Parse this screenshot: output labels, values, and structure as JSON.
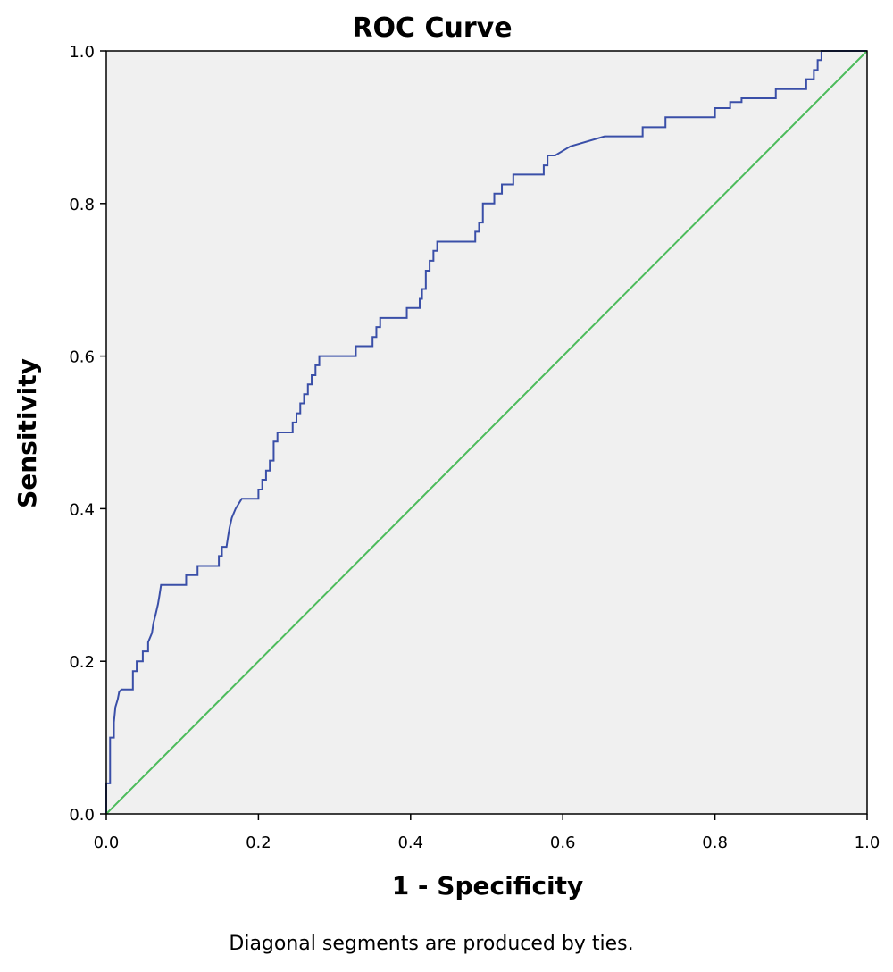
{
  "chart_data": {
    "type": "line",
    "title": "ROC Curve",
    "xlabel": "1 - Specificity",
    "ylabel": "Sensitivity",
    "footnote": "Diagonal segments are produced by ties.",
    "xlim": [
      0,
      1
    ],
    "ylim": [
      0,
      1
    ],
    "xticks": [
      "0.0",
      "0.2",
      "0.4",
      "0.6",
      "0.8",
      "1.0"
    ],
    "yticks": [
      "0.0",
      "0.2",
      "0.4",
      "0.6",
      "0.8",
      "1.0"
    ],
    "grid": false,
    "legend": "none",
    "colors": {
      "plot_background": "#f0f0f0",
      "frame": "#000000",
      "roc_line": "#3a4fa8",
      "reference_line": "#4cbb5b"
    },
    "series": [
      {
        "role": "roc",
        "x": [
          0.0,
          0.0,
          0.005,
          0.005,
          0.01,
          0.01,
          0.012,
          0.015,
          0.017,
          0.02,
          0.02,
          0.035,
          0.035,
          0.04,
          0.04,
          0.048,
          0.048,
          0.055,
          0.055,
          0.06,
          0.062,
          0.065,
          0.068,
          0.07,
          0.072,
          0.075,
          0.075,
          0.105,
          0.105,
          0.12,
          0.12,
          0.148,
          0.148,
          0.152,
          0.152,
          0.158,
          0.16,
          0.162,
          0.165,
          0.165,
          0.17,
          0.17,
          0.178,
          0.178,
          0.2,
          0.2,
          0.205,
          0.205,
          0.21,
          0.21,
          0.215,
          0.215,
          0.22,
          0.22,
          0.225,
          0.225,
          0.245,
          0.245,
          0.25,
          0.25,
          0.255,
          0.255,
          0.26,
          0.26,
          0.265,
          0.265,
          0.27,
          0.27,
          0.275,
          0.275,
          0.28,
          0.28,
          0.328,
          0.328,
          0.35,
          0.35,
          0.355,
          0.355,
          0.36,
          0.36,
          0.395,
          0.395,
          0.412,
          0.412,
          0.415,
          0.415,
          0.42,
          0.42,
          0.425,
          0.425,
          0.43,
          0.43,
          0.435,
          0.435,
          0.485,
          0.485,
          0.49,
          0.49,
          0.495,
          0.495,
          0.51,
          0.51,
          0.52,
          0.52,
          0.535,
          0.535,
          0.575,
          0.575,
          0.58,
          0.58,
          0.59,
          0.59,
          0.61,
          0.61,
          0.655,
          0.655,
          0.705,
          0.705,
          0.735,
          0.735,
          0.8,
          0.8,
          0.82,
          0.82,
          0.835,
          0.835,
          0.88,
          0.88,
          0.92,
          0.92,
          0.93,
          0.93,
          0.935,
          0.935,
          0.94,
          0.94,
          1.0
        ],
        "y": [
          0.0,
          0.04,
          0.04,
          0.1,
          0.1,
          0.12,
          0.14,
          0.15,
          0.16,
          0.163,
          0.163,
          0.163,
          0.187,
          0.187,
          0.2,
          0.2,
          0.213,
          0.213,
          0.225,
          0.237,
          0.25,
          0.262,
          0.275,
          0.287,
          0.3,
          0.3,
          0.3,
          0.3,
          0.313,
          0.313,
          0.325,
          0.325,
          0.338,
          0.338,
          0.35,
          0.35,
          0.363,
          0.375,
          0.388,
          0.388,
          0.4,
          0.4,
          0.413,
          0.413,
          0.413,
          0.425,
          0.425,
          0.438,
          0.438,
          0.45,
          0.45,
          0.463,
          0.463,
          0.488,
          0.488,
          0.5,
          0.5,
          0.513,
          0.513,
          0.525,
          0.525,
          0.538,
          0.538,
          0.55,
          0.55,
          0.563,
          0.563,
          0.575,
          0.575,
          0.588,
          0.588,
          0.6,
          0.6,
          0.613,
          0.613,
          0.625,
          0.625,
          0.638,
          0.638,
          0.65,
          0.65,
          0.663,
          0.663,
          0.675,
          0.675,
          0.688,
          0.688,
          0.712,
          0.712,
          0.725,
          0.725,
          0.738,
          0.738,
          0.75,
          0.75,
          0.763,
          0.763,
          0.775,
          0.775,
          0.8,
          0.8,
          0.813,
          0.813,
          0.825,
          0.825,
          0.838,
          0.838,
          0.85,
          0.85,
          0.863,
          0.863,
          0.863,
          0.875,
          0.875,
          0.888,
          0.888,
          0.888,
          0.9,
          0.9,
          0.913,
          0.913,
          0.925,
          0.925,
          0.933,
          0.933,
          0.938,
          0.938,
          0.95,
          0.95,
          0.963,
          0.963,
          0.975,
          0.975,
          0.988,
          0.988,
          1.0,
          1.0
        ]
      },
      {
        "role": "reference",
        "x": [
          0.0,
          1.0
        ],
        "y": [
          0.0,
          1.0
        ]
      }
    ]
  }
}
